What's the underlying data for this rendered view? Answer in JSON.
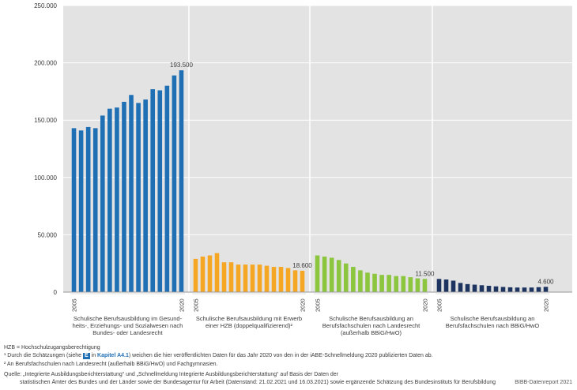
{
  "chart_data": {
    "type": "bar",
    "y_ticks": [
      "250.000",
      "200.000",
      "150.000",
      "100.000",
      "50.000",
      "0"
    ],
    "ylim": [
      0,
      250000
    ],
    "grid": true,
    "groups": [
      {
        "name": "Schulische Berufsausbildung im Gesundheits-, Erziehungs- und Sozialwesen nach Bundes- oder Landesrecht",
        "caption_lines": [
          "Schulische Berufsausbildung im Gesund-",
          "heits-, Erziehungs- und Sozialwesen nach",
          "Bundes- oder Landesrecht"
        ],
        "color": "#1f6fb5",
        "x_start": "2005",
        "x_end": "2020",
        "values": [
          143000,
          141000,
          144000,
          143000,
          154000,
          160000,
          161000,
          166000,
          172000,
          165000,
          168000,
          177000,
          176000,
          180000,
          189000,
          193500
        ],
        "end_label": "193.500"
      },
      {
        "name": "Schulische Berufsausbildung mit Erwerb einer HZB (doppelqualifizierend)",
        "caption_lines": [
          "Schulische Berufsausbildung mit Erwerb",
          "einer HZB (doppelqualifizierend)²"
        ],
        "color": "#f5a623",
        "x_start": "2005",
        "x_end": "2020",
        "values": [
          29000,
          31000,
          32000,
          34000,
          26000,
          26000,
          24000,
          24000,
          24000,
          24000,
          23000,
          22000,
          22000,
          21000,
          19000,
          18600
        ],
        "end_label": "18.600"
      },
      {
        "name": "Schulische Berufsausbildung an Berufsfachschulen nach Landesrecht (außerhalb BBiG/HwO)",
        "caption_lines": [
          "Schulische Berufsausbildung an",
          "Berufsfachschulen nach Landesrecht",
          "(außerhalb BBiG/HwO)"
        ],
        "color": "#8cc63f",
        "x_start": "2005",
        "x_end": "2020",
        "values": [
          32000,
          31000,
          30000,
          28000,
          25000,
          22000,
          19000,
          17000,
          16000,
          15000,
          15000,
          14000,
          14000,
          13000,
          12000,
          11500
        ],
        "end_label": "11.500"
      },
      {
        "name": "Schulische Berufsausbildung an Berufsfachschulen nach BBiG/HwO",
        "caption_lines": [
          "Schulische Berufsausbildung an",
          "Berufsfachschulen nach BBiG/HwO"
        ],
        "color": "#1d3461",
        "x_start": "2005",
        "x_end": "2020",
        "values": [
          11500,
          11000,
          10000,
          8000,
          7000,
          6500,
          6000,
          5500,
          5000,
          4500,
          4200,
          4000,
          4000,
          4000,
          4300,
          4600
        ],
        "end_label": "4.600"
      }
    ]
  },
  "footnotes": {
    "hzb": "HZB = Hochschulzugangsberechtigung",
    "fn1_a": "¹ Durch die Schätzungen (siehe",
    "fn1_badge": "E",
    "fn1_in": "in",
    "fn1_link": "Kapitel A4.1",
    "fn1_b": ") weichen die hier veröffentlichten Daten für das Jahr 2020 von den in der iABE-Schnellmeldung 2020 publizierten Daten ab.",
    "fn2": "² An Berufsfachschulen nach Landesrecht (außerhalb BBiG/HwO) und Fachgymnasien.",
    "source1": "Quelle: „Integrierte Ausbildungsberichterstattung“ und „Schnellmeldung Integrierte Ausbildungsberichterstattung“ auf Basis der Daten der",
    "source2": "statistischen Ämter des Bundes und der Länder sowie der Bundesagentur für Arbeit (Datenstand: 21.02.2021 und 16.03.2021) sowie ergänzende Schätzung des Bundesinstituts für Berufsbildung",
    "credit": "BIBB-Datenreport 2021"
  }
}
